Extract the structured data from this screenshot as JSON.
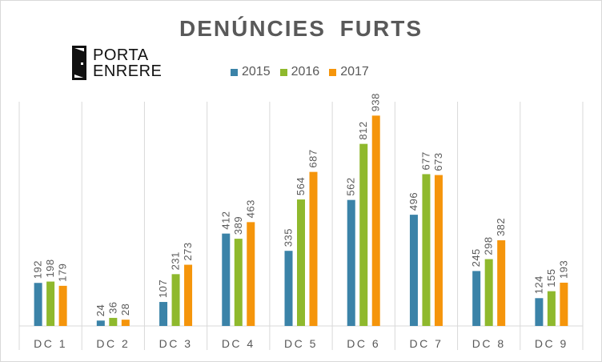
{
  "logo": {
    "line1": "PORTA",
    "line2": "ENRERE"
  },
  "chart_data": {
    "type": "bar",
    "title": "DENÚNCIES FURTS",
    "categories": [
      "DC 1",
      "DC 2",
      "DC 3",
      "DC 4",
      "DC 5",
      "DC 6",
      "DC 7",
      "DC 8",
      "DC 9"
    ],
    "series": [
      {
        "name": "2015",
        "color": "#3b83a8",
        "values": [
          192,
          24,
          107,
          412,
          335,
          562,
          496,
          245,
          124
        ]
      },
      {
        "name": "2016",
        "color": "#8fb92d",
        "values": [
          198,
          36,
          231,
          389,
          564,
          812,
          677,
          298,
          155
        ]
      },
      {
        "name": "2017",
        "color": "#f5950b",
        "values": [
          179,
          28,
          273,
          463,
          687,
          938,
          673,
          382,
          193
        ]
      }
    ],
    "ylim": [
      0,
      1000
    ],
    "grid": "vertical category separators",
    "legend_position": "top",
    "data_labels": true
  }
}
